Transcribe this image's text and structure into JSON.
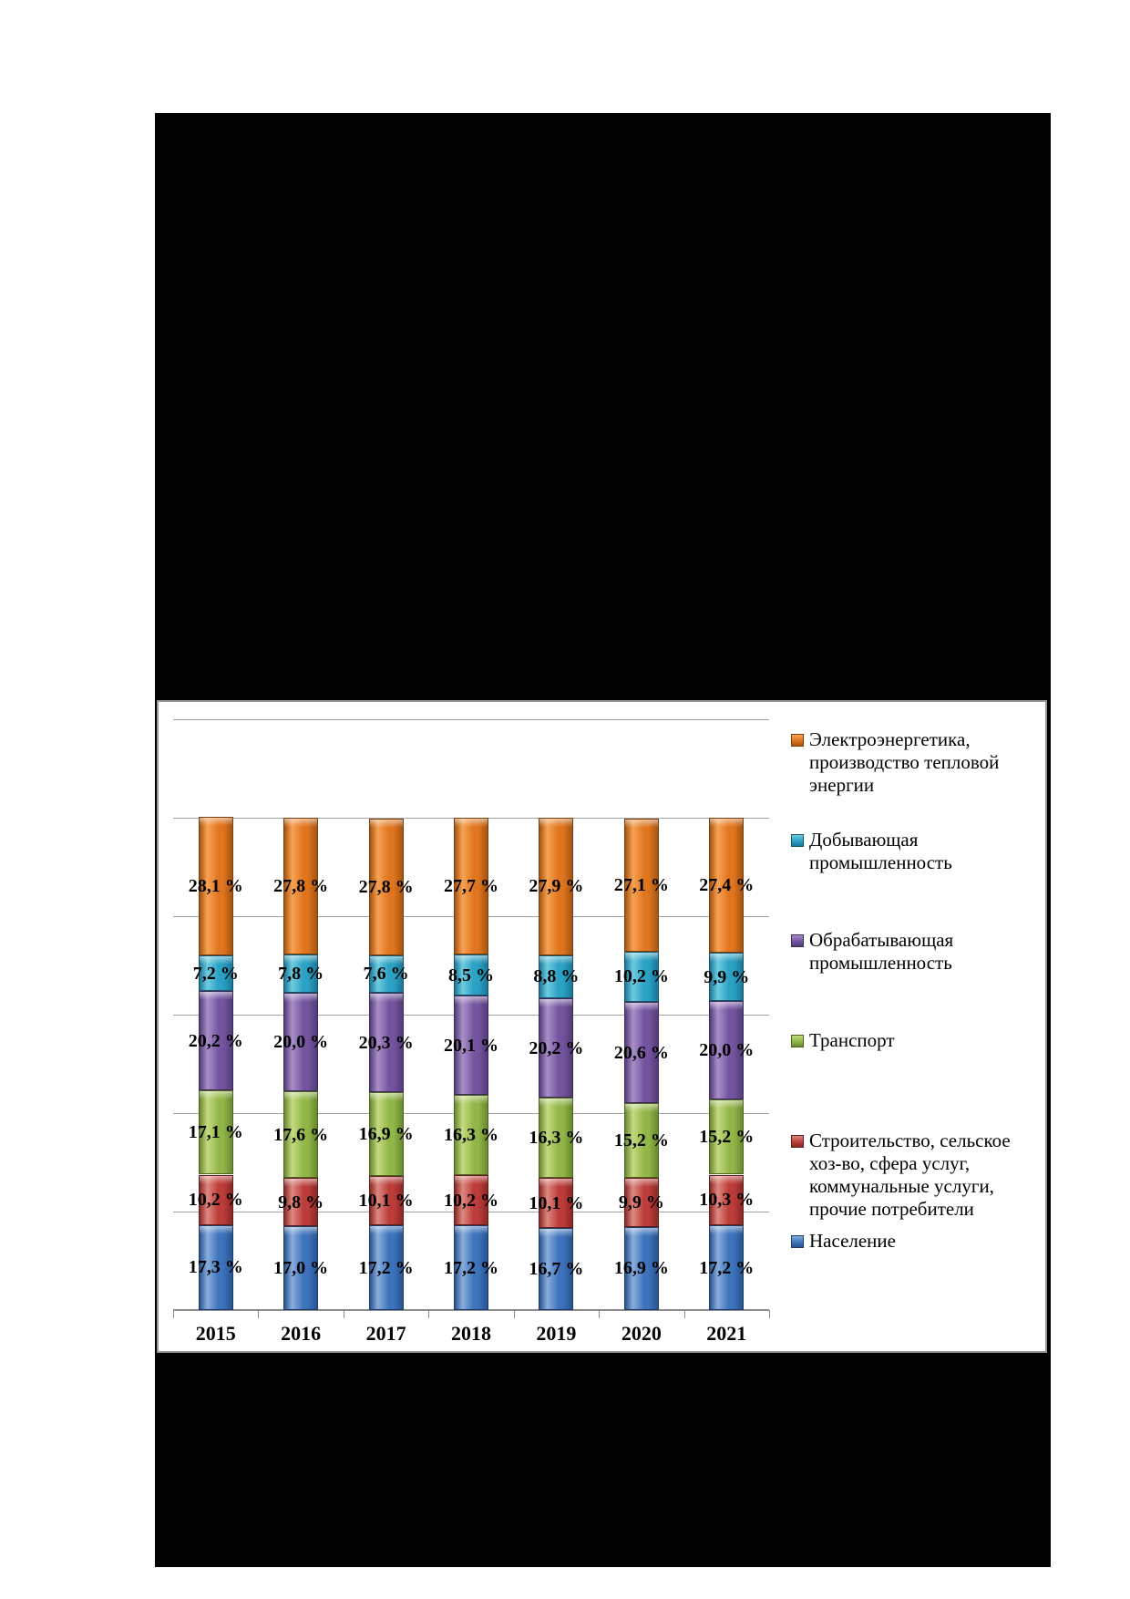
{
  "chart_data": {
    "type": "bar",
    "stacked": true,
    "unit": "percent",
    "categories": [
      "2015",
      "2016",
      "2017",
      "2018",
      "2019",
      "2020",
      "2021"
    ],
    "series": [
      {
        "name": "Электроэнергетика, производство тепловой энергии",
        "color": "#df751e",
        "values": [
          28.1,
          27.8,
          27.8,
          27.7,
          27.9,
          27.1,
          27.4
        ],
        "labels": [
          "28,1 %",
          "27,8 %",
          "27,8 %",
          "27,7 %",
          "27,9 %",
          "27,1 %",
          "27,4 %"
        ]
      },
      {
        "name": "Добывающая промышленность",
        "color": "#2ba1c4",
        "values": [
          7.2,
          7.8,
          7.6,
          8.5,
          8.8,
          10.2,
          9.9
        ],
        "labels": [
          "7,2 %",
          "7,8 %",
          "7,6 %",
          "8,5 %",
          "8,8 %",
          "10,2 %",
          "9,9 %"
        ]
      },
      {
        "name": "Обрабатывающая промышленность",
        "color": "#74549f",
        "values": [
          20.2,
          20.0,
          20.3,
          20.1,
          20.2,
          20.6,
          20.0
        ],
        "labels": [
          "20,2 %",
          "20,0 %",
          "20,3 %",
          "20,1 %",
          "20,2 %",
          "20,6 %",
          "20,0 %"
        ]
      },
      {
        "name": "Транспорт",
        "color": "#92b648",
        "values": [
          17.1,
          17.6,
          16.9,
          16.3,
          16.3,
          15.2,
          15.2
        ],
        "labels": [
          "17,1 %",
          "17,6 %",
          "16,9 %",
          "16,3 %",
          "16,3 %",
          "15,2 %",
          "15,2 %"
        ]
      },
      {
        "name": "Строительство, сельское хоз-во, сфера услуг, коммунальные услуги, прочие потребители",
        "color": "#bb3c39",
        "values": [
          10.2,
          9.8,
          10.1,
          10.2,
          10.1,
          9.9,
          10.3
        ],
        "labels": [
          "10,2 %",
          "9,8 %",
          "10,1 %",
          "10,2 %",
          "10,1 %",
          "9,9 %",
          "10,3 %"
        ]
      },
      {
        "name": "Население",
        "color": "#3c73bb",
        "values": [
          17.3,
          17.0,
          17.2,
          17.2,
          16.7,
          16.9,
          17.2
        ],
        "labels": [
          "17,3 %",
          "17,0 %",
          "17,2 %",
          "17,2 %",
          "16,7 %",
          "16,9 %",
          "17,2 %"
        ]
      }
    ],
    "title": "",
    "xlabel": "",
    "ylabel": "",
    "ylim": [
      0,
      120
    ],
    "gridline_step": 20,
    "grid": true,
    "legend_position": "right",
    "legend": [
      {
        "series": 0,
        "lines": [
          "Электроэнергетика,",
          "производство тепловой",
          "энергии"
        ]
      },
      {
        "series": 1,
        "lines": [
          "Добывающая",
          "промышленность"
        ]
      },
      {
        "series": 2,
        "lines": [
          "Обрабатывающая",
          "промышленность"
        ]
      },
      {
        "series": 3,
        "lines": [
          "Транспорт"
        ]
      },
      {
        "series": 4,
        "lines": [
          "Строительство, сельское",
          "хоз-во, сфера услуг,",
          "коммунальные услуги,",
          "прочие потребители"
        ]
      },
      {
        "series": 5,
        "lines": [
          "Население"
        ]
      }
    ]
  }
}
